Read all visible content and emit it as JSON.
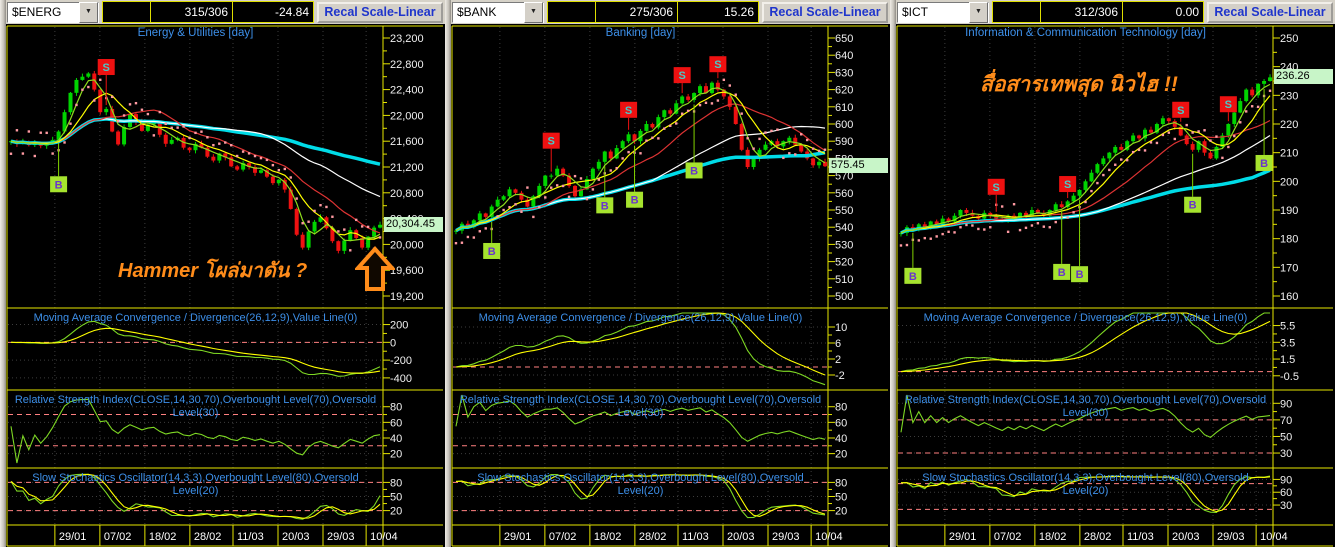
{
  "shared": {
    "recal_label": "Recal Scale-Linear",
    "macd_title": "Moving Average Convergence / Divergence(26,12,9),Value Line(0)",
    "rsi_title": "Relative Strength Index(CLOSE,14,30,70),Overbought Level(70),Oversold Level(30)",
    "stoch_title": "Slow Stochastics Oscillator(14,3,3),Overbought Level(80),Oversold Level(20)",
    "dates": [
      "29/01",
      "07/02",
      "18/02",
      "28/02",
      "11/03",
      "20/03",
      "29/03",
      "10/04"
    ],
    "colors": {
      "up_candle": "#00d400",
      "down_candle": "#ee1111",
      "ma_fast_green": "#8fdc1e",
      "ma_yellow": "#ffff00",
      "ma_red": "#dd3333",
      "ma_white": "#ffffff",
      "ma_cyan": "#00dce8",
      "sar_dots": "#ff9aa2",
      "level_dashed": "#ff8080",
      "frame_yellow": "#e6e600",
      "title_blue": "#3d8fe8",
      "tag_bg": "#c8f5c8",
      "sell_box": "#ee1111",
      "sell_letter": "#49c8c8",
      "buy_box": "#a6e32e",
      "buy_letter": "#6a35cc",
      "annotation_orange": "#ff8c1a"
    }
  },
  "chart_data": [
    {
      "type": "candlestick",
      "toolbar": {
        "ticker": "$ENERG",
        "field_empty": "",
        "count": "315/306",
        "change": "-24.84"
      },
      "title": "Energy & Utilities [day]",
      "y_axis": {
        "max": 23200,
        "min": 19200,
        "ticks": [
          23200,
          22800,
          22400,
          22000,
          21600,
          21200,
          20800,
          20400,
          20000,
          19600,
          19200
        ]
      },
      "last": 20304.45,
      "last_label": "20,304.45",
      "closes": [
        21600,
        21560,
        21590,
        21540,
        21580,
        21530,
        21560,
        21620,
        21750,
        22050,
        22350,
        22550,
        22600,
        22650,
        22400,
        22050,
        22100,
        21750,
        21550,
        21820,
        22020,
        21900,
        21760,
        21860,
        21900,
        21700,
        21560,
        21620,
        21650,
        21500,
        21460,
        21560,
        21500,
        21360,
        21300,
        21410,
        21350,
        21210,
        21160,
        21260,
        21200,
        21110,
        21150,
        21050,
        20950,
        21000,
        20850,
        20550,
        20150,
        19950,
        20200,
        20350,
        20420,
        20250,
        20050,
        19900,
        20060,
        20220,
        20100,
        19950,
        20120,
        20260,
        20304.45
      ],
      "signals": {
        "sell": [
          [
            16,
            32
          ]
        ],
        "buy": [
          [
            8,
            35
          ]
        ]
      },
      "annotation": "Hammer โผล่มาดัน ?",
      "indicators": {
        "macd": {
          "ticks": [
            200,
            0,
            -200,
            -400
          ],
          "range": [
            330,
            -480
          ],
          "levels": [
            0
          ]
        },
        "rsi": {
          "ticks": [
            80,
            60,
            40,
            20
          ],
          "range": [
            95,
            8
          ],
          "levels": [
            70,
            30
          ]
        },
        "stoch": {
          "ticks": [
            80,
            50,
            20
          ],
          "range": [
            100,
            0
          ],
          "levels": [
            80,
            20
          ]
        }
      }
    },
    {
      "type": "candlestick",
      "toolbar": {
        "ticker": "$BANK",
        "field_empty": "",
        "count": "275/306",
        "change": "15.26"
      },
      "title": "Banking [day]",
      "y_axis": {
        "max": 650,
        "min": 500,
        "ticks": [
          650,
          640,
          630,
          620,
          610,
          600,
          590,
          580,
          570,
          560,
          550,
          540,
          530,
          520,
          510,
          500
        ]
      },
      "last": 575.45,
      "last_label": "575.45",
      "closes": [
        538,
        542,
        540,
        544,
        548,
        546,
        552,
        556,
        558,
        562,
        560,
        556,
        552,
        558,
        564,
        570,
        570,
        574,
        570,
        564,
        558,
        562,
        568,
        574,
        578,
        584,
        580,
        586,
        590,
        594,
        590,
        596,
        600,
        598,
        604,
        608,
        606,
        612,
        616,
        614,
        618,
        622,
        618,
        624,
        620,
        616,
        610,
        600,
        585,
        575,
        580,
        585,
        588,
        590,
        587,
        590,
        592,
        588,
        584,
        580,
        576,
        578,
        575.45
      ],
      "signals": {
        "sell": [
          [
            16,
            25
          ],
          [
            29,
            14
          ],
          [
            38,
            12
          ],
          [
            44,
            8
          ]
        ],
        "buy": [
          [
            6,
            23
          ],
          [
            25,
            33
          ],
          [
            30,
            48
          ],
          [
            40,
            60
          ]
        ]
      },
      "annotation": "",
      "indicators": {
        "macd": {
          "ticks": [
            10,
            6,
            2,
            -2
          ],
          "range": [
            13.5,
            -4.5
          ],
          "levels": [
            0
          ]
        },
        "rsi": {
          "ticks": [
            80,
            60,
            40,
            20
          ],
          "range": [
            95,
            8
          ],
          "levels": [
            70,
            30
          ]
        },
        "stoch": {
          "ticks": [
            80,
            50,
            20
          ],
          "range": [
            100,
            0
          ],
          "levels": [
            80,
            20
          ]
        }
      }
    },
    {
      "type": "candlestick",
      "toolbar": {
        "ticker": "$ICT",
        "field_empty": "",
        "count": "312/306",
        "change": "0.00"
      },
      "title": "Information & Communication Technology [day]",
      "y_axis": {
        "max": 250,
        "min": 160,
        "ticks": [
          250,
          240,
          230,
          220,
          210,
          200,
          190,
          180,
          170,
          160
        ]
      },
      "last": 236.26,
      "last_label": "236.26",
      "closes": [
        182,
        184,
        183,
        185,
        184,
        186,
        185,
        187,
        186,
        188,
        190,
        189,
        188,
        187,
        189,
        188,
        187,
        186,
        188,
        187,
        189,
        188,
        190,
        189,
        188,
        190,
        192,
        191,
        193,
        195,
        197,
        200,
        203,
        206,
        208,
        210,
        212,
        211,
        214,
        216,
        215,
        218,
        217,
        220,
        222,
        221,
        219,
        216,
        213,
        211,
        214,
        210,
        208,
        212,
        216,
        220,
        224,
        228,
        232,
        230,
        234,
        235,
        236.26
      ],
      "signals": {
        "sell": [
          [
            16,
            19
          ],
          [
            28,
            8
          ],
          [
            47,
            6
          ],
          [
            55,
            11
          ]
        ],
        "buy": [
          [
            2,
            37
          ],
          [
            27,
            56
          ],
          [
            30,
            68
          ],
          [
            49,
            45
          ],
          [
            61,
            68
          ]
        ]
      },
      "annotation": "สื่อสารเทพสุด นิวไฮ !!",
      "indicators": {
        "macd": {
          "ticks": [
            5.5,
            3.5,
            1.5,
            -0.5
          ],
          "range": [
            7,
            -1.6
          ],
          "levels": [
            0
          ]
        },
        "rsi": {
          "ticks": [
            90,
            70,
            50,
            30
          ],
          "range": [
            100,
            18
          ],
          "levels": [
            70,
            30
          ]
        },
        "stoch": {
          "ticks": [
            90,
            60,
            30
          ],
          "range": [
            105,
            -5
          ],
          "levels": [
            80,
            20
          ]
        }
      }
    }
  ]
}
